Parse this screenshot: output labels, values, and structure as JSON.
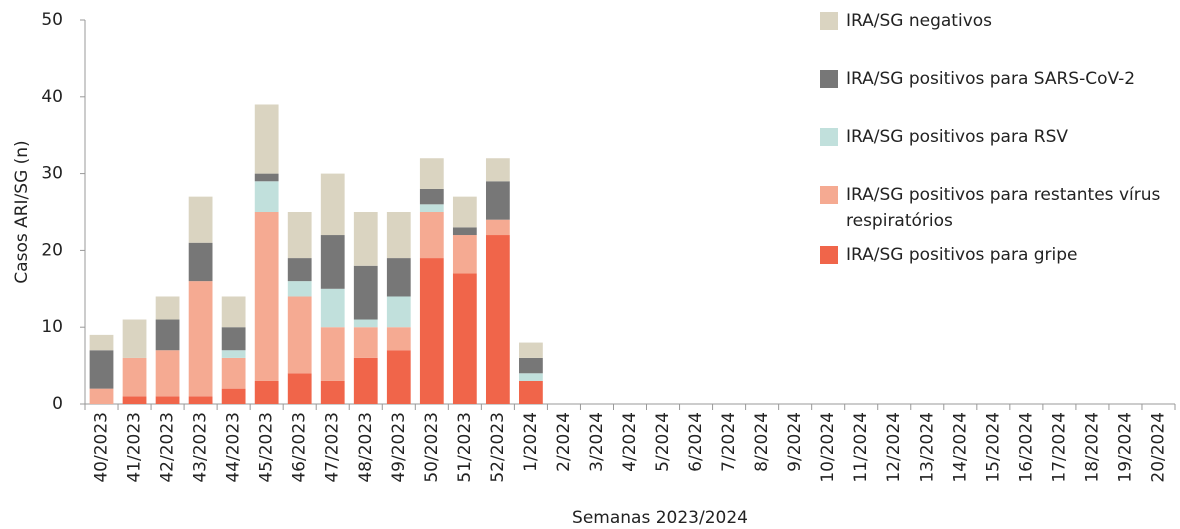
{
  "chart_data": {
    "type": "stacked_bar",
    "xlabel": "Semanas 2023/2024",
    "ylabel": "Casos ARI/SG (n)",
    "categories": [
      "40/2023",
      "41/2023",
      "42/2023",
      "43/2023",
      "44/2023",
      "45/2023",
      "46/2023",
      "47/2023",
      "48/2023",
      "49/2023",
      "50/2023",
      "51/2023",
      "52/2023",
      "1/2024",
      "2/2024",
      "3/2024",
      "4/2024",
      "5/2024",
      "6/2024",
      "7/2024",
      "8/2024",
      "9/2024",
      "10/2024",
      "11/2024",
      "12/2024",
      "13/2024",
      "14/2024",
      "15/2024",
      "16/2024",
      "17/2024",
      "18/2024",
      "19/2024",
      "20/2024"
    ],
    "series": [
      {
        "name": "IRA/SG positivos para gripe",
        "color": "#f0654a",
        "values": [
          0,
          1,
          1,
          1,
          2,
          3,
          4,
          3,
          6,
          7,
          19,
          17,
          22,
          3,
          0,
          0,
          0,
          0,
          0,
          0,
          0,
          0,
          0,
          0,
          0,
          0,
          0,
          0,
          0,
          0,
          0,
          0,
          0
        ]
      },
      {
        "name": "IRA/SG positivos para restantes vírus respiratórios",
        "color": "#f5aa92",
        "values": [
          2,
          5,
          6,
          15,
          4,
          22,
          10,
          7,
          4,
          3,
          6,
          5,
          2,
          0,
          0,
          0,
          0,
          0,
          0,
          0,
          0,
          0,
          0,
          0,
          0,
          0,
          0,
          0,
          0,
          0,
          0,
          0,
          0
        ]
      },
      {
        "name": "IRA/SG positivos para RSV",
        "color": "#c1e0dc",
        "values": [
          0,
          0,
          0,
          0,
          1,
          4,
          2,
          5,
          1,
          4,
          1,
          0,
          0,
          1,
          0,
          0,
          0,
          0,
          0,
          0,
          0,
          0,
          0,
          0,
          0,
          0,
          0,
          0,
          0,
          0,
          0,
          0,
          0
        ]
      },
      {
        "name": "IRA/SG positivos para SARS-CoV-2",
        "color": "#777777",
        "values": [
          5,
          0,
          4,
          5,
          3,
          1,
          3,
          7,
          7,
          5,
          2,
          1,
          5,
          2,
          0,
          0,
          0,
          0,
          0,
          0,
          0,
          0,
          0,
          0,
          0,
          0,
          0,
          0,
          0,
          0,
          0,
          0,
          0
        ]
      },
      {
        "name": "IRA/SG negativos",
        "color": "#dad4c1",
        "values": [
          2,
          5,
          3,
          6,
          4,
          9,
          6,
          8,
          7,
          6,
          4,
          4,
          3,
          2,
          0,
          0,
          0,
          0,
          0,
          0,
          0,
          0,
          0,
          0,
          0,
          0,
          0,
          0,
          0,
          0,
          0,
          0,
          0
        ]
      }
    ],
    "ylim": [
      0,
      50
    ],
    "yticks": [
      0,
      10,
      20,
      30,
      40,
      50
    ],
    "grid": false,
    "legend": "right"
  }
}
